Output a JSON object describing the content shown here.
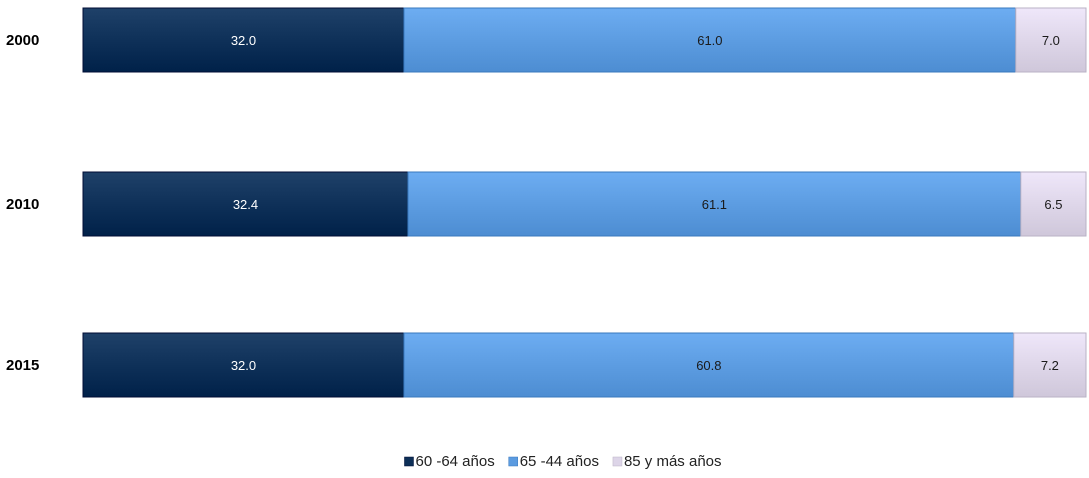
{
  "chart_data": {
    "type": "bar",
    "orientation": "horizontal",
    "stacked": true,
    "categories": [
      "2000",
      "2010",
      "2015"
    ],
    "series": [
      {
        "name": "60 -64 años",
        "values": [
          32.0,
          32.4,
          32.0
        ],
        "color": "#0d2f57",
        "label_color": "#ffffff"
      },
      {
        "name": "65 -44 años",
        "values": [
          61.0,
          61.1,
          60.8
        ],
        "color": "#5b9be0",
        "label_color": "#1a1a1a"
      },
      {
        "name": "85 y más años",
        "values": [
          7.0,
          6.5,
          7.2
        ],
        "color": "#ddd5e8",
        "label_color": "#1a1a1a"
      }
    ],
    "value_labels": [
      [
        "32.0",
        "32.4",
        "32.0"
      ],
      [
        "61.0",
        "61.1",
        "60.8"
      ],
      [
        "7.0",
        "6.5",
        "7.2"
      ]
    ],
    "xlim": [
      0,
      100
    ],
    "grid": false,
    "legend_position": "bottom"
  }
}
